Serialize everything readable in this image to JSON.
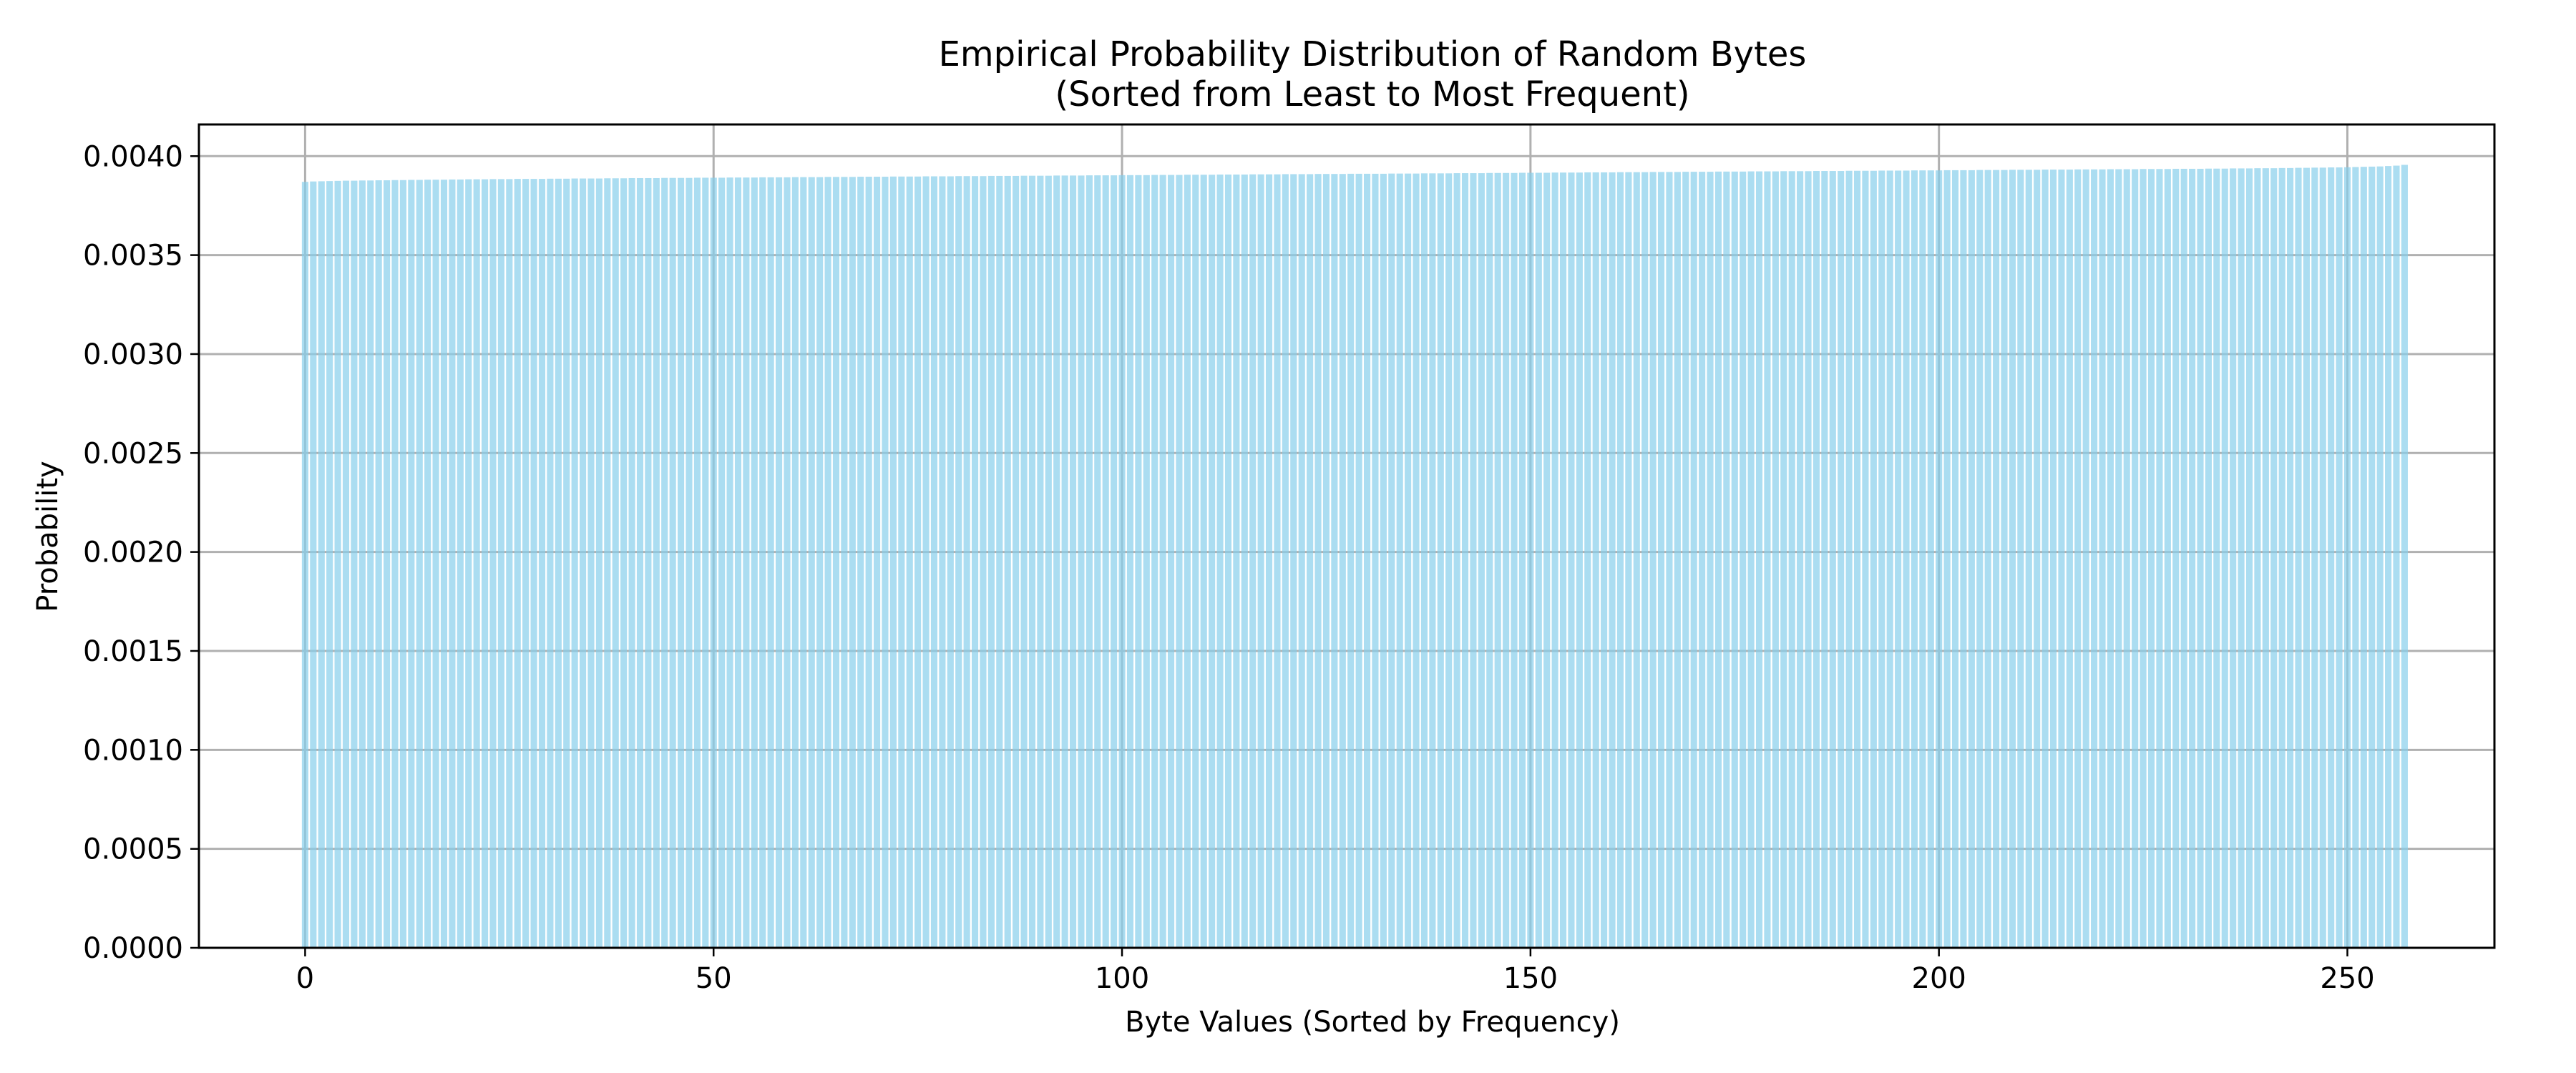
{
  "chart_data": {
    "type": "bar",
    "title": "Empirical Probability Distribution of Random Bytes",
    "subtitle": "(Sorted from Least to Most Frequent)",
    "xlabel": "Byte Values (Sorted by Frequency)",
    "ylabel": "Probability",
    "xlim": [
      -13,
      268
    ],
    "ylim": [
      0,
      0.00416
    ],
    "xticks": [
      0,
      50,
      100,
      150,
      200,
      250
    ],
    "xtick_labels": [
      "0",
      "50",
      "100",
      "150",
      "200",
      "250"
    ],
    "yticks": [
      0,
      0.0005,
      0.001,
      0.0015,
      0.002,
      0.0025,
      0.003,
      0.0035,
      0.004
    ],
    "ytick_labels": [
      "0.0000",
      "0.0005",
      "0.0010",
      "0.0015",
      "0.0020",
      "0.0025",
      "0.0030",
      "0.0035",
      "0.0040"
    ],
    "grid": true,
    "bar_color": "#87ceeb",
    "series": [
      {
        "values": [
          0.00387,
          0.003872,
          0.003873,
          0.003874,
          0.003875,
          0.003876,
          0.003876,
          0.003877,
          0.003877,
          0.003878,
          0.003878,
          0.003879,
          0.003879,
          0.00388,
          0.00388,
          0.003881,
          0.003881,
          0.003881,
          0.003882,
          0.003882,
          0.003883,
          0.003883,
          0.003883,
          0.003884,
          0.003884,
          0.003884,
          0.003885,
          0.003885,
          0.003885,
          0.003885,
          0.003886,
          0.003886,
          0.003886,
          0.003887,
          0.003887,
          0.003887,
          0.003887,
          0.003888,
          0.003888,
          0.003888,
          0.003889,
          0.003889,
          0.003889,
          0.003889,
          0.00389,
          0.00389,
          0.00389,
          0.00389,
          0.003891,
          0.003891,
          0.003891,
          0.003891,
          0.003892,
          0.003892,
          0.003892,
          0.003892,
          0.003893,
          0.003893,
          0.003893,
          0.003893,
          0.003894,
          0.003894,
          0.003894,
          0.003894,
          0.003895,
          0.003895,
          0.003895,
          0.003895,
          0.003896,
          0.003896,
          0.003896,
          0.003896,
          0.003897,
          0.003897,
          0.003897,
          0.003897,
          0.003898,
          0.003898,
          0.003898,
          0.003898,
          0.003899,
          0.003899,
          0.003899,
          0.003899,
          0.0039,
          0.0039,
          0.0039,
          0.0039,
          0.003901,
          0.003901,
          0.003901,
          0.003901,
          0.003902,
          0.003902,
          0.003902,
          0.003902,
          0.003903,
          0.003903,
          0.003903,
          0.003903,
          0.003904,
          0.003904,
          0.003904,
          0.003904,
          0.003905,
          0.003905,
          0.003905,
          0.003905,
          0.003906,
          0.003906,
          0.003906,
          0.003906,
          0.003907,
          0.003907,
          0.003907,
          0.003907,
          0.003908,
          0.003908,
          0.003908,
          0.003908,
          0.003909,
          0.003909,
          0.003909,
          0.003909,
          0.00391,
          0.00391,
          0.00391,
          0.00391,
          0.003911,
          0.003911,
          0.003911,
          0.003911,
          0.003911,
          0.003912,
          0.003912,
          0.003912,
          0.003912,
          0.003913,
          0.003913,
          0.003913,
          0.003913,
          0.003914,
          0.003914,
          0.003914,
          0.003914,
          0.003915,
          0.003915,
          0.003915,
          0.003915,
          0.003916,
          0.003916,
          0.003916,
          0.003916,
          0.003917,
          0.003917,
          0.003917,
          0.003917,
          0.003918,
          0.003918,
          0.003918,
          0.003918,
          0.003919,
          0.003919,
          0.003919,
          0.003919,
          0.00392,
          0.00392,
          0.00392,
          0.00392,
          0.003921,
          0.003921,
          0.003921,
          0.003921,
          0.003922,
          0.003922,
          0.003922,
          0.003922,
          0.003923,
          0.003923,
          0.003923,
          0.003923,
          0.003924,
          0.003924,
          0.003924,
          0.003924,
          0.003925,
          0.003925,
          0.003925,
          0.003925,
          0.003926,
          0.003926,
          0.003926,
          0.003926,
          0.003927,
          0.003927,
          0.003927,
          0.003927,
          0.003928,
          0.003928,
          0.003928,
          0.003928,
          0.003929,
          0.003929,
          0.003929,
          0.003929,
          0.00393,
          0.00393,
          0.00393,
          0.00393,
          0.003931,
          0.003931,
          0.003931,
          0.003931,
          0.003932,
          0.003932,
          0.003932,
          0.003932,
          0.003933,
          0.003933,
          0.003933,
          0.003933,
          0.003934,
          0.003934,
          0.003934,
          0.003934,
          0.003935,
          0.003935,
          0.003935,
          0.003935,
          0.003936,
          0.003936,
          0.003936,
          0.003936,
          0.003937,
          0.003937,
          0.003937,
          0.003938,
          0.003938,
          0.003938,
          0.003939,
          0.003939,
          0.003939,
          0.00394,
          0.00394,
          0.003941,
          0.003941,
          0.003942,
          0.003942,
          0.003943,
          0.003943,
          0.003944,
          0.003945,
          0.003946,
          0.003947,
          0.003948,
          0.00395,
          0.003952,
          0.003956
        ]
      }
    ]
  }
}
